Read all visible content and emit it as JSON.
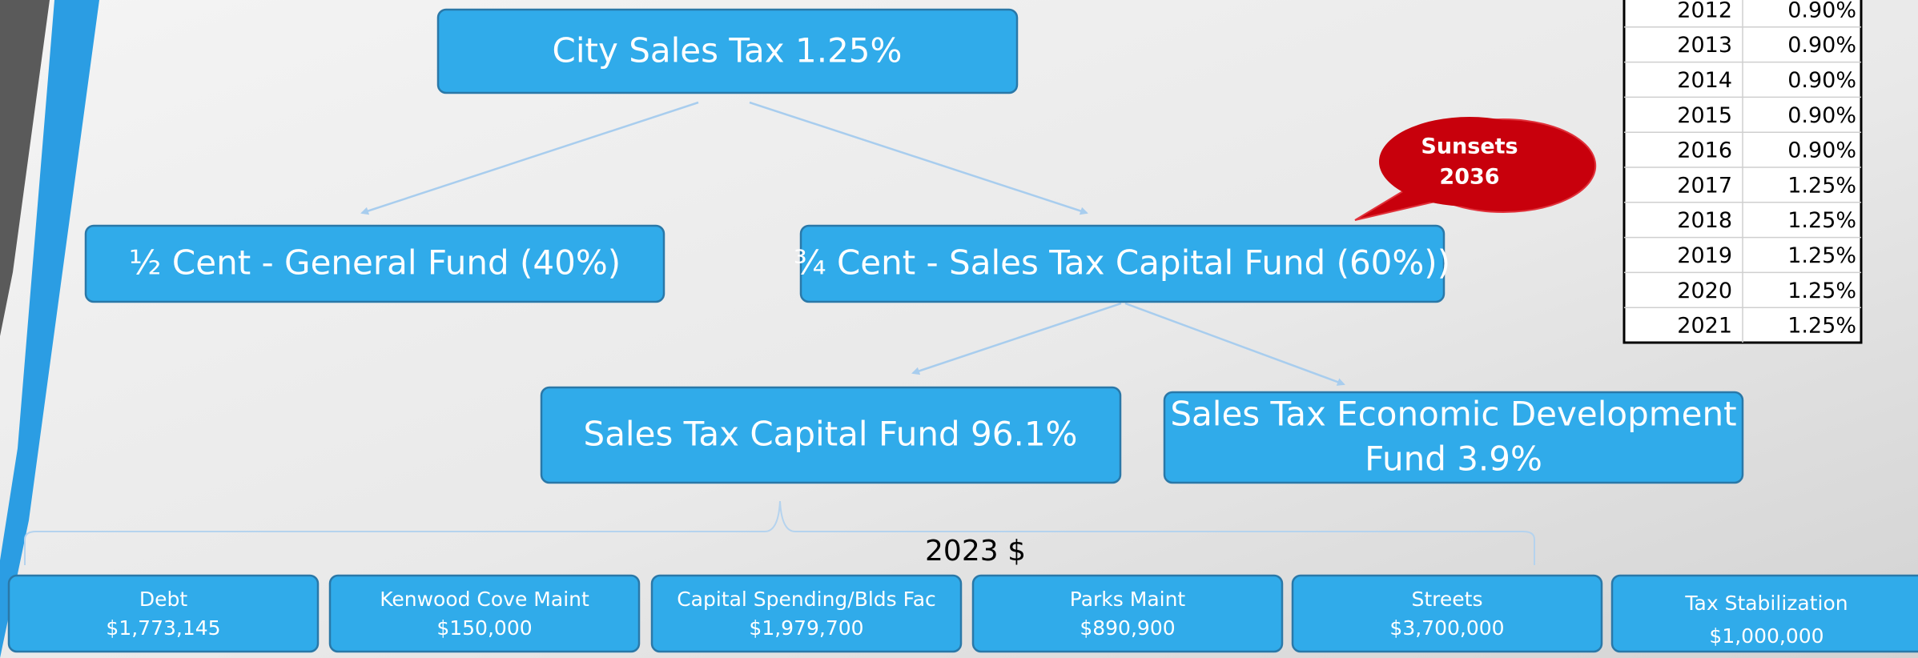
{
  "diagram": {
    "nodes": [
      {
        "label": "City Sales Tax 1.25%"
      },
      {
        "label": "½ Cent - General Fund (40%)"
      },
      {
        "label": "¾ Cent - Sales Tax Capital Fund (60%))"
      },
      {
        "label": "Sales Tax Capital Fund 96.1%"
      },
      {
        "lines": [
          "Sales Tax Economic Development",
          "Fund 3.9%"
        ]
      }
    ],
    "callout": {
      "lines": [
        "Sunsets",
        "2036"
      ]
    },
    "brace_label": "2023 $",
    "funds": [
      {
        "name": "Debt",
        "amount": "$1,773,145"
      },
      {
        "name": "Kenwood Cove Maint",
        "amount": "$150,000"
      },
      {
        "name": "Capital Spending/Blds Fac",
        "amount": "$1,979,700"
      },
      {
        "name": "Parks Maint",
        "amount": "$890,900"
      },
      {
        "name": "Streets",
        "amount": "$3,700,000"
      },
      {
        "name": "Tax Stabilization",
        "amount": "$1,000,000"
      }
    ]
  },
  "table": {
    "rows": [
      [
        "2012",
        "0.90%"
      ],
      [
        "2013",
        "0.90%"
      ],
      [
        "2014",
        "0.90%"
      ],
      [
        "2015",
        "0.90%"
      ],
      [
        "2016",
        "0.90%"
      ],
      [
        "2017",
        "1.25%"
      ],
      [
        "2018",
        "1.25%"
      ],
      [
        "2019",
        "1.25%"
      ],
      [
        "2020",
        "1.25%"
      ],
      [
        "2021",
        "1.25%"
      ]
    ]
  }
}
